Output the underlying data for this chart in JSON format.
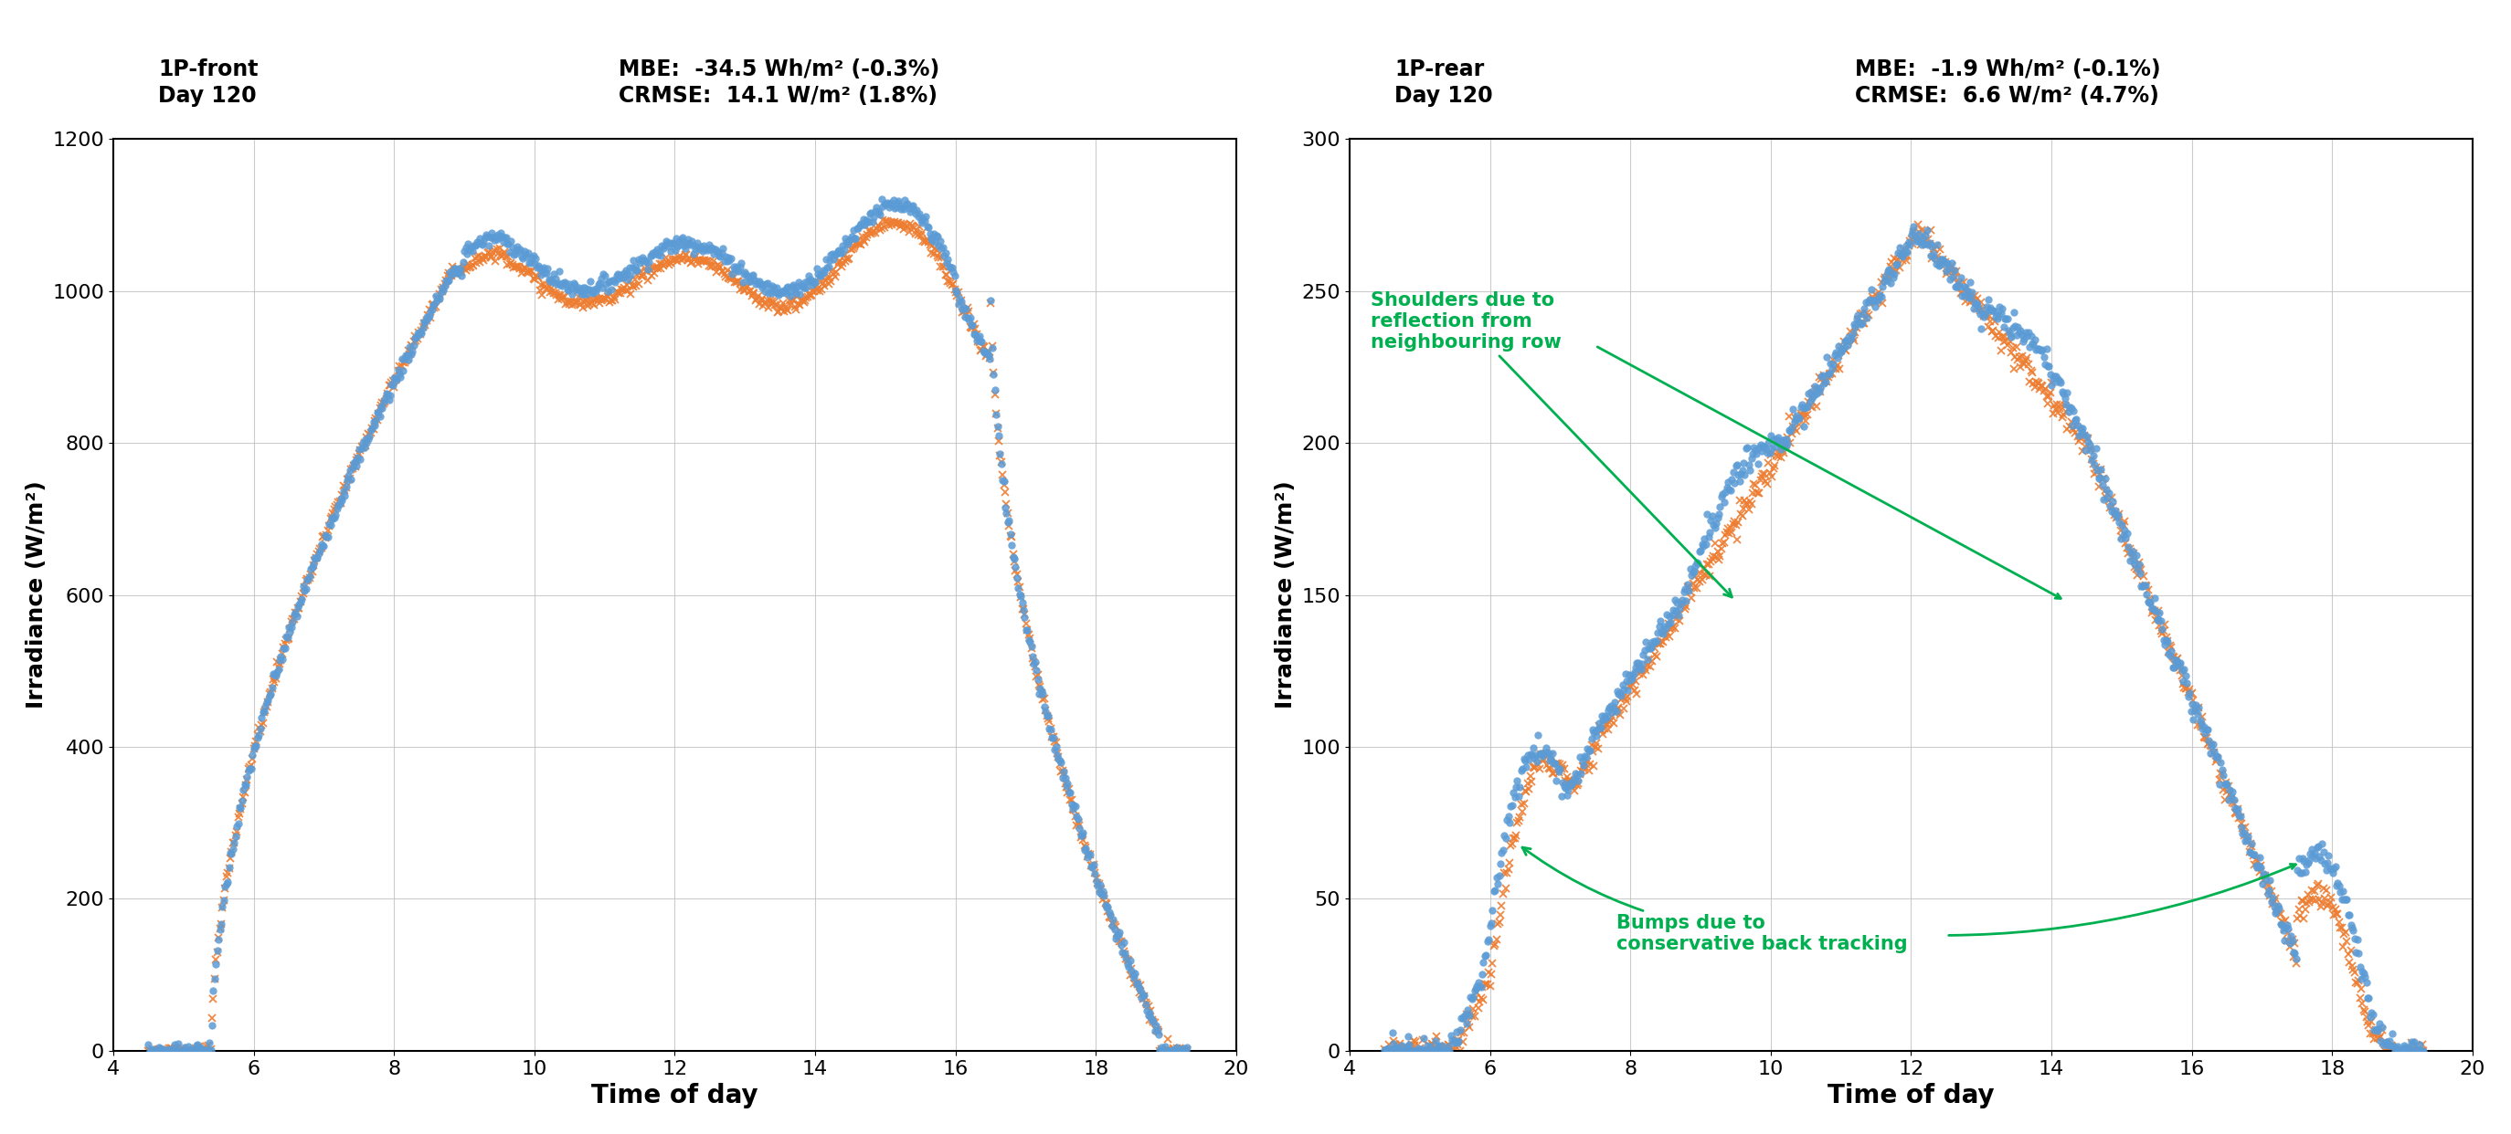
{
  "left_title_left": "1P-front\nDay 120",
  "left_title_right": "MBE:  -34.5 Wh/m² (-0.3%)\nCRMSE:  14.1 W/m² (1.8%)",
  "right_title_left": "1P-rear\nDay 120",
  "right_title_right": "MBE:  -1.9 Wh/m² (-0.1%)\nCRMSE:  6.6 W/m² (4.7%)",
  "xlabel": "Time of day",
  "ylabel": "Irradiance (W/m²)",
  "left_ylim": [
    0,
    1200
  ],
  "right_ylim": [
    0,
    300
  ],
  "xlim": [
    4,
    20
  ],
  "xticks": [
    4,
    6,
    8,
    10,
    12,
    14,
    16,
    18,
    20
  ],
  "left_yticks": [
    0,
    200,
    400,
    600,
    800,
    1000,
    1200
  ],
  "right_yticks": [
    0,
    50,
    100,
    150,
    200,
    250,
    300
  ],
  "blue_color": "#5b9bd5",
  "orange_color": "#ed7d31",
  "green_color": "#00b050",
  "background_color": "#ffffff",
  "grid_color": "#c0c0c0",
  "annotation1": "Shoulders due to\nreflection from\nneighbouring row",
  "annotation2": "Bumps due to\nconservative back tracking"
}
